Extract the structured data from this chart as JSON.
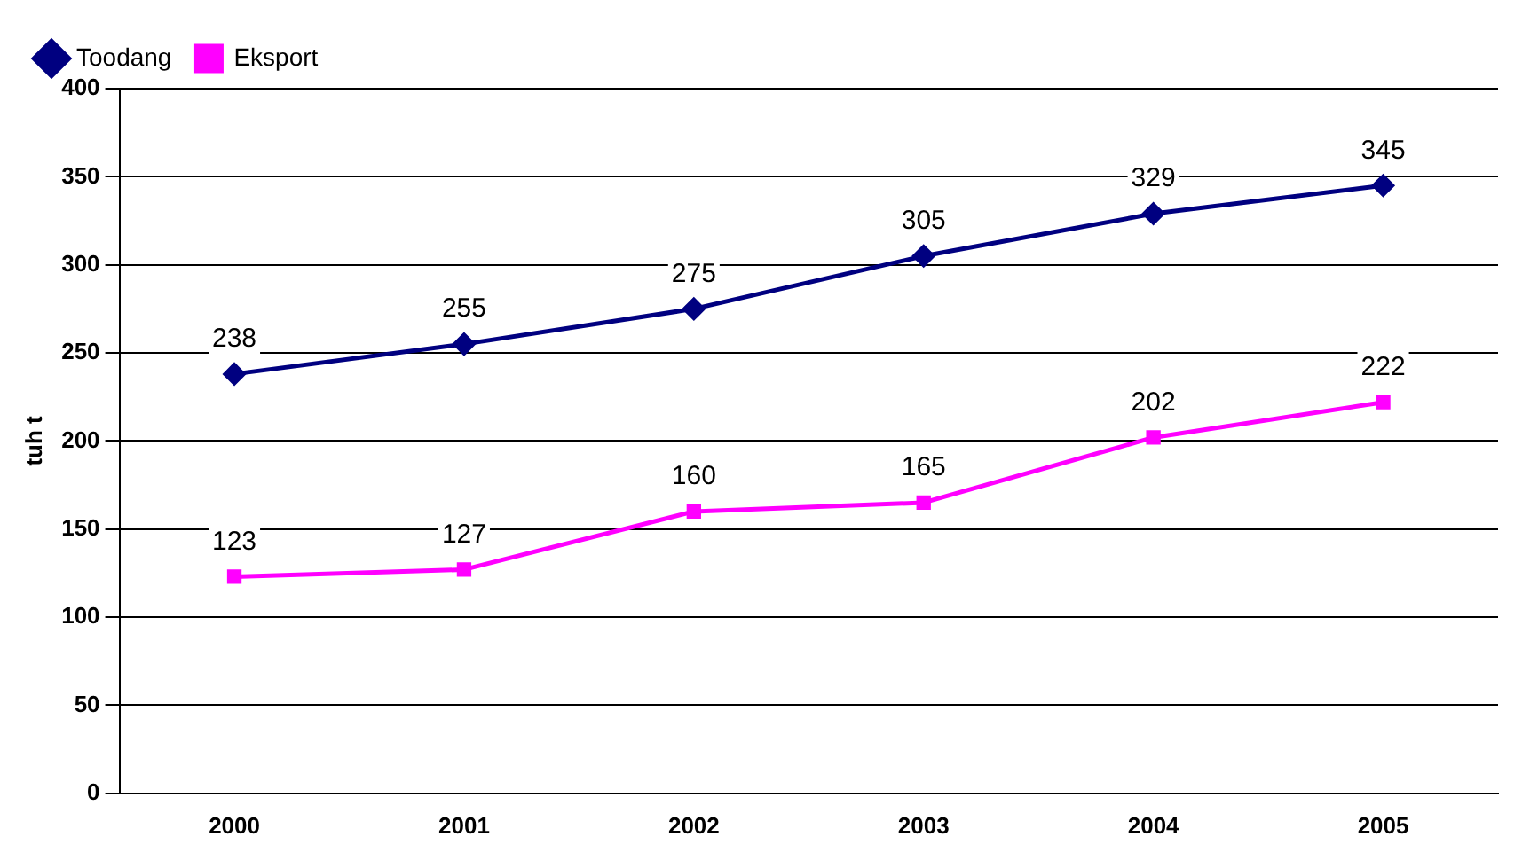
{
  "chart_data": {
    "type": "line",
    "ylabel": "tuh t",
    "categories": [
      "2000",
      "2001",
      "2002",
      "2003",
      "2004",
      "2005"
    ],
    "series": [
      {
        "name": "Toodang",
        "color": "#000080",
        "values": [
          238,
          255,
          275,
          305,
          329,
          345
        ],
        "marker": "diamond"
      },
      {
        "name": "Eksport",
        "color": "#ff00ff",
        "values": [
          123,
          127,
          160,
          165,
          202,
          222
        ],
        "marker": "square"
      }
    ],
    "ylim": [
      0,
      400
    ],
    "yticks": [
      0,
      50,
      100,
      150,
      200,
      250,
      300,
      350,
      400
    ],
    "grid": "y",
    "legend": "top left",
    "data_labels": true,
    "line_style": "solid"
  }
}
